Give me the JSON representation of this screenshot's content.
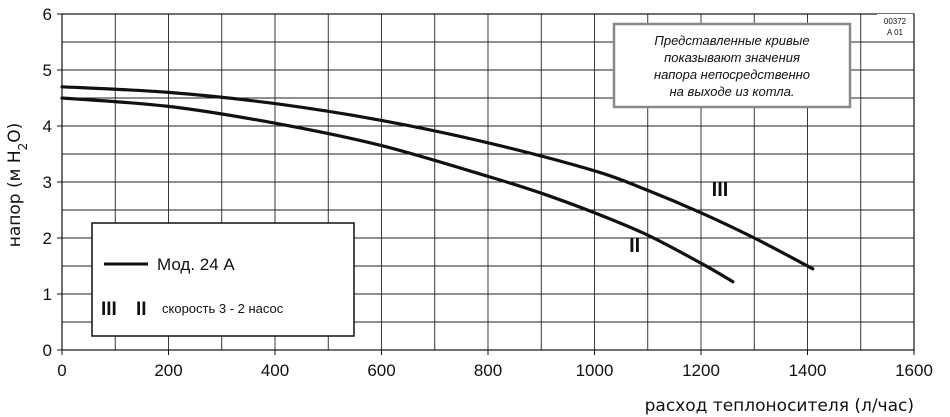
{
  "chart_data": {
    "type": "line",
    "xlabel": "расход теплоносителя (л/час)",
    "ylabel_main": "напор (м H",
    "ylabel_sub": "2",
    "ylabel_end": "O)",
    "xlim": [
      0,
      1600
    ],
    "ylim": [
      0,
      6
    ],
    "x_ticks": [
      0,
      200,
      400,
      600,
      800,
      1000,
      1200,
      1400,
      1600
    ],
    "y_ticks": [
      0,
      1,
      2,
      3,
      4,
      5,
      6
    ],
    "x_tick_labels": [
      "0",
      "200",
      "400",
      "600",
      "800",
      "1000",
      "1200",
      "1400",
      "1600"
    ],
    "y_tick_labels": [
      "0",
      "1",
      "2",
      "3",
      "4",
      "5",
      "6"
    ],
    "grid": true,
    "series": [
      {
        "name": "III",
        "x": [
          0,
          200,
          400,
          600,
          800,
          1000,
          1100,
          1200,
          1300,
          1410
        ],
        "y": [
          4.7,
          4.6,
          4.4,
          4.1,
          3.7,
          3.2,
          2.85,
          2.45,
          2.0,
          1.45
        ]
      },
      {
        "name": "II",
        "x": [
          0,
          200,
          400,
          600,
          800,
          900,
          1000,
          1100,
          1200,
          1260
        ],
        "y": [
          4.5,
          4.35,
          4.05,
          3.65,
          3.1,
          2.8,
          2.45,
          2.05,
          1.55,
          1.22
        ]
      }
    ],
    "curve_labels": [
      {
        "text": "III",
        "x": 1220,
        "y": 2.75
      },
      {
        "text": "II",
        "x": 1065,
        "y": 1.75
      }
    ],
    "annotation_lines": [
      "Представленные кривые",
      "показывают  значения",
      "напора непосредственно",
      "на выходе из котла."
    ],
    "code_lines": [
      "00372",
      "A 01"
    ],
    "legend": {
      "model_label": "Мод. 24 А",
      "speed_glyph_3": "III",
      "speed_glyph_2": "II",
      "speed_label": "скорость 3 - 2 насос"
    }
  }
}
